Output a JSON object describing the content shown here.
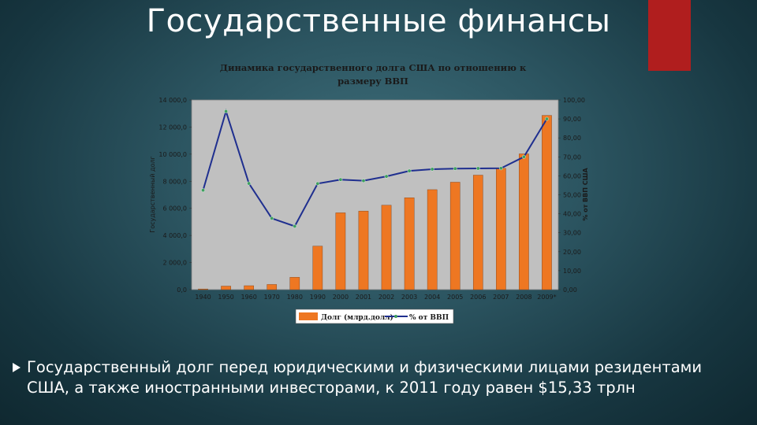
{
  "slide": {
    "title": "Государственные финансы",
    "bullet_text": "Государственный долг перед юридическими и физическими лицами резидентами США, а также иностранными инвесторами, к 2011 году равен $15,33 трлн",
    "accent_color": "#b01e1e"
  },
  "chart_data": {
    "type": "bar",
    "title": "Динамика государственного долга США по отношению к размеру ВВП",
    "title_lines": [
      "Динамика государственного долга США по отношению к",
      "размеру ВВП"
    ],
    "categories": [
      "1940",
      "1950",
      "1960",
      "1970",
      "1980",
      "1990",
      "2000",
      "2001",
      "2002",
      "2003",
      "2004",
      "2005",
      "2006",
      "2007",
      "2008",
      "2009*"
    ],
    "ylabel": "Государственный долг",
    "y2label": "% от ВВП США",
    "ylim": [
      0,
      14000
    ],
    "y2lim": [
      0,
      100
    ],
    "yticks": [
      "0,0",
      "2 000,0",
      "4 000,0",
      "6 000,0",
      "8 000,0",
      "10 000,0",
      "12 000,0",
      "14 000,0"
    ],
    "y2ticks": [
      "0,00",
      "10,00",
      "20,00",
      "30,00",
      "40,00",
      "50,00",
      "60,00",
      "70,00",
      "80,00",
      "90,00",
      "100,00"
    ],
    "series": [
      {
        "name": "Долг (млрд.долл)",
        "type": "bar",
        "color": "#ee7722",
        "values": [
          50,
          260,
          290,
          380,
          910,
          3210,
          5670,
          5800,
          6230,
          6780,
          7380,
          7930,
          8450,
          8950,
          10020,
          12860
        ]
      },
      {
        "name": "% от ВВП",
        "type": "line",
        "axis": "y2",
        "color": "#1f2f8f",
        "marker_color": "#3f9f5f",
        "values": [
          52.4,
          94.0,
          56.0,
          37.6,
          33.4,
          55.9,
          58.0,
          57.4,
          59.7,
          62.6,
          63.5,
          63.8,
          63.9,
          64.0,
          70.0,
          90.0
        ]
      }
    ],
    "grid": false,
    "legend_position": "bottom"
  }
}
